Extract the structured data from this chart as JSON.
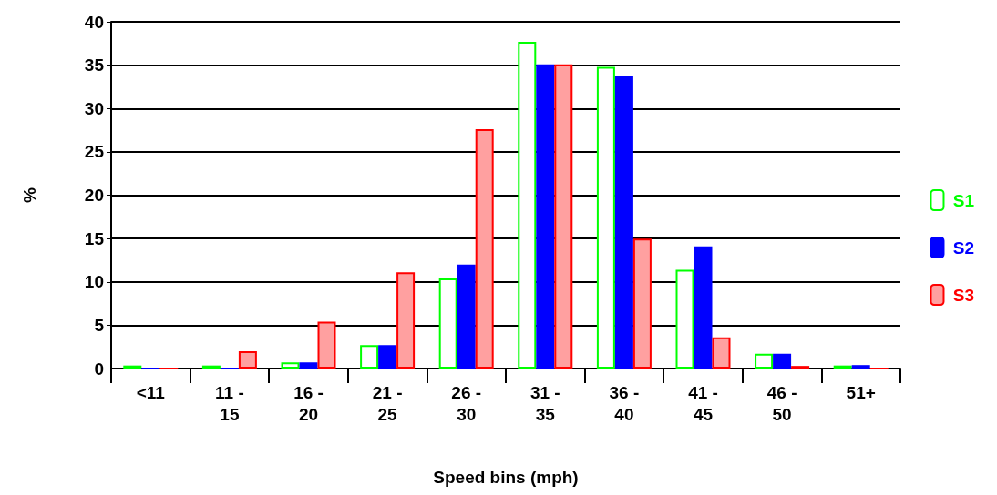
{
  "chart_data": {
    "type": "bar",
    "xlabel": "Speed bins (mph)",
    "ylabel": "%",
    "categories": [
      "<11",
      "11 - 15",
      "16 - 20",
      "21 - 25",
      "26 - 30",
      "31 - 35",
      "36 - 40",
      "41 - 45",
      "46 - 50",
      "51+"
    ],
    "series": [
      {
        "name": "S1",
        "color": "#00ff00",
        "values": [
          0.35,
          0.35,
          0.7,
          2.7,
          10.4,
          37.7,
          34.8,
          11.4,
          1.7,
          0.35
        ]
      },
      {
        "name": "S2",
        "color": "#0000ff",
        "values": [
          0,
          0,
          0.7,
          2.7,
          12.0,
          35.1,
          33.8,
          14.1,
          1.7,
          0.4
        ]
      },
      {
        "name": "S3",
        "color": "#ff0000",
        "values": [
          0,
          2.0,
          5.4,
          11.1,
          27.6,
          35.1,
          15.0,
          3.6,
          0.3,
          0
        ]
      }
    ],
    "ylim": [
      0,
      40
    ],
    "yticks": [
      0,
      5,
      10,
      15,
      20,
      25,
      30,
      35,
      40
    ],
    "grid": "y",
    "legend": "right"
  }
}
